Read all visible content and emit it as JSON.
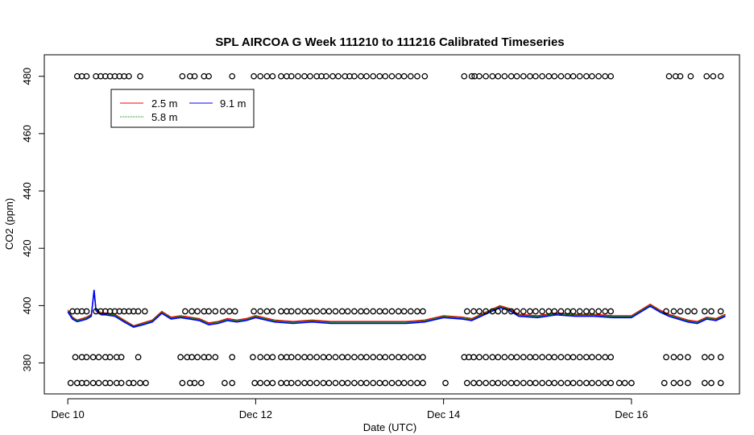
{
  "chart_data": {
    "type": "line",
    "title": "SPL AIRCOA G  Week 111210 to 111216  Calibrated Timeseries",
    "xlabel": "Date (UTC)",
    "ylabel": "CO2 (ppm)",
    "x_tick_labels": [
      "Dec 10",
      "Dec 12",
      "Dec 14",
      "Dec 16"
    ],
    "x_tick_values": [
      0,
      2,
      4,
      6
    ],
    "xlim": [
      -0.25,
      7.15
    ],
    "y_ticks": [
      380,
      400,
      420,
      440,
      460,
      480
    ],
    "ylim": [
      369.2,
      487.5
    ],
    "grid": false,
    "legend": {
      "placement": "top-left",
      "entries": [
        "2.5 m",
        "5.8 m",
        "9.1 m"
      ]
    },
    "series": [
      {
        "name": "2.5 m",
        "color": "#ff0000",
        "x": [
          0.0,
          0.05,
          0.1,
          0.15,
          0.2,
          0.25,
          0.28,
          0.3,
          0.33,
          0.36,
          0.4,
          0.5,
          0.6,
          0.7,
          0.8,
          0.9,
          1.0,
          1.1,
          1.2,
          1.3,
          1.4,
          1.5,
          1.6,
          1.7,
          1.8,
          1.9,
          2.0,
          2.2,
          2.4,
          2.6,
          2.8,
          3.0,
          3.2,
          3.4,
          3.6,
          3.8,
          4.0,
          4.2,
          4.3,
          4.5,
          4.6,
          4.7,
          4.8,
          5.0,
          5.2,
          5.4,
          5.6,
          5.8,
          6.0,
          6.1,
          6.2,
          6.3,
          6.4,
          6.6,
          6.7,
          6.8,
          6.9,
          7.0
        ],
        "y": [
          398.5,
          396,
          395,
          395.5,
          396,
          397,
          405,
          399,
          398,
          397.5,
          397.5,
          397,
          395,
          393,
          394,
          395,
          398,
          396,
          396.5,
          396,
          395.5,
          394,
          394.5,
          395.5,
          395,
          395.5,
          396.5,
          395,
          394.5,
          395,
          394.5,
          394.5,
          394.5,
          394.5,
          394.5,
          395,
          396.5,
          396,
          395.5,
          398.5,
          400,
          399,
          397,
          396.5,
          397.5,
          397,
          397,
          396.5,
          396.5,
          398.5,
          400.5,
          398.5,
          397,
          395,
          394.5,
          396,
          395.5,
          397
        ]
      },
      {
        "name": "5.8 m",
        "color": "#008000",
        "x": [
          0.0,
          0.05,
          0.1,
          0.15,
          0.2,
          0.25,
          0.28,
          0.3,
          0.33,
          0.36,
          0.4,
          0.5,
          0.6,
          0.7,
          0.8,
          0.9,
          1.0,
          1.1,
          1.2,
          1.3,
          1.4,
          1.5,
          1.6,
          1.7,
          1.8,
          1.9,
          2.0,
          2.2,
          2.4,
          2.6,
          2.8,
          3.0,
          3.2,
          3.4,
          3.6,
          3.8,
          4.0,
          4.2,
          4.3,
          4.5,
          4.6,
          4.7,
          4.8,
          5.0,
          5.2,
          5.4,
          5.6,
          5.8,
          6.0,
          6.1,
          6.2,
          6.3,
          6.4,
          6.6,
          6.7,
          6.8,
          6.9,
          7.0
        ],
        "y": [
          398.2,
          395.7,
          394.8,
          395.2,
          395.7,
          396.7,
          404.5,
          398.7,
          397.7,
          397.2,
          397.2,
          396.7,
          394.7,
          392.8,
          393.7,
          394.7,
          397.7,
          395.7,
          396.2,
          395.7,
          395.2,
          393.7,
          394.2,
          395.2,
          394.7,
          395.2,
          396.2,
          394.7,
          394.2,
          394.7,
          394.2,
          394.2,
          394.2,
          394.2,
          394.2,
          394.7,
          396.2,
          395.7,
          395.2,
          398.2,
          399.7,
          398.7,
          396.7,
          396.2,
          397.2,
          396.7,
          396.7,
          396.2,
          396.2,
          398.2,
          400.2,
          398.2,
          396.7,
          394.7,
          394.2,
          395.7,
          395.2,
          396.7
        ]
      },
      {
        "name": "9.1 m",
        "color": "#0000ff",
        "x": [
          0.0,
          0.05,
          0.1,
          0.15,
          0.2,
          0.25,
          0.28,
          0.3,
          0.33,
          0.36,
          0.4,
          0.5,
          0.6,
          0.7,
          0.8,
          0.9,
          1.0,
          1.1,
          1.2,
          1.3,
          1.4,
          1.5,
          1.6,
          1.7,
          1.8,
          1.9,
          2.0,
          2.2,
          2.4,
          2.6,
          2.8,
          3.0,
          3.2,
          3.4,
          3.6,
          3.8,
          4.0,
          4.2,
          4.3,
          4.5,
          4.6,
          4.7,
          4.8,
          5.0,
          5.2,
          5.4,
          5.6,
          5.8,
          6.0,
          6.1,
          6.2,
          6.3,
          6.4,
          6.6,
          6.7,
          6.8,
          6.9,
          7.0
        ],
        "y": [
          397.8,
          395.3,
          394.4,
          394.8,
          395.3,
          396.3,
          405.5,
          398.3,
          397.3,
          396.8,
          396.8,
          396.3,
          394.3,
          392.5,
          393.3,
          394.3,
          397.3,
          395.3,
          395.8,
          395.3,
          394.8,
          393.3,
          393.8,
          394.8,
          394.3,
          394.8,
          395.8,
          394.3,
          393.8,
          394.3,
          393.8,
          393.8,
          393.8,
          393.8,
          393.8,
          394.3,
          395.8,
          395.3,
          394.8,
          397.8,
          399.3,
          398.3,
          396.3,
          395.8,
          396.8,
          396.3,
          396.3,
          395.8,
          395.8,
          397.8,
          399.8,
          397.8,
          396.3,
          394.3,
          393.8,
          395.3,
          394.8,
          396.3
        ]
      }
    ],
    "markers": {
      "shape": "open-circle",
      "rows": [
        {
          "y": 480,
          "x": [
            0.1,
            0.15,
            0.2,
            0.3,
            0.35,
            0.4,
            0.45,
            0.5,
            0.55,
            0.6,
            0.65,
            0.77,
            1.22,
            1.3,
            1.35,
            1.45,
            1.5,
            1.75,
            1.98,
            2.05,
            2.12,
            2.18,
            2.27,
            2.33,
            2.38,
            2.45,
            2.52,
            2.58,
            2.65,
            2.7,
            2.75,
            2.82,
            2.88,
            2.95,
            3.0,
            3.05,
            3.12,
            3.18,
            3.25,
            3.32,
            3.38,
            3.45,
            3.52,
            3.58,
            3.65,
            3.72,
            3.8,
            4.22,
            4.3,
            4.33,
            4.38,
            4.45,
            4.52,
            4.58,
            4.65,
            4.72,
            4.78,
            4.85,
            4.92,
            4.98,
            5.05,
            5.12,
            5.18,
            5.25,
            5.32,
            5.38,
            5.45,
            5.52,
            5.58,
            5.65,
            5.72,
            5.78,
            6.4,
            6.47,
            6.52,
            6.63,
            6.8,
            6.87,
            6.95
          ]
        },
        {
          "y": 398,
          "x": [
            0.05,
            0.1,
            0.15,
            0.2,
            0.3,
            0.35,
            0.4,
            0.45,
            0.5,
            0.55,
            0.6,
            0.65,
            0.7,
            0.75,
            0.82,
            1.25,
            1.32,
            1.38,
            1.45,
            1.5,
            1.57,
            1.65,
            1.72,
            1.78,
            1.98,
            2.05,
            2.12,
            2.18,
            2.27,
            2.33,
            2.38,
            2.45,
            2.52,
            2.58,
            2.65,
            2.72,
            2.78,
            2.85,
            2.92,
            2.98,
            3.05,
            3.12,
            3.18,
            3.25,
            3.32,
            3.38,
            3.45,
            3.52,
            3.58,
            3.65,
            3.72,
            3.78,
            4.25,
            4.32,
            4.38,
            4.45,
            4.52,
            4.58,
            4.65,
            4.72,
            4.78,
            4.85,
            4.92,
            4.98,
            5.05,
            5.12,
            5.18,
            5.25,
            5.32,
            5.38,
            5.45,
            5.52,
            5.58,
            5.65,
            5.72,
            5.78,
            6.37,
            6.45,
            6.52,
            6.6,
            6.67,
            6.78,
            6.85,
            6.95
          ]
        },
        {
          "y": 382,
          "x": [
            0.08,
            0.15,
            0.2,
            0.27,
            0.33,
            0.4,
            0.45,
            0.52,
            0.57,
            0.75,
            1.2,
            1.27,
            1.32,
            1.38,
            1.45,
            1.5,
            1.57,
            1.75,
            1.97,
            2.05,
            2.12,
            2.18,
            2.27,
            2.33,
            2.38,
            2.45,
            2.52,
            2.58,
            2.65,
            2.72,
            2.78,
            2.85,
            2.92,
            2.98,
            3.05,
            3.12,
            3.18,
            3.25,
            3.32,
            3.38,
            3.45,
            3.52,
            3.58,
            3.65,
            3.72,
            3.78,
            4.22,
            4.27,
            4.32,
            4.38,
            4.45,
            4.52,
            4.58,
            4.65,
            4.72,
            4.78,
            4.85,
            4.92,
            4.98,
            5.05,
            5.12,
            5.18,
            5.25,
            5.32,
            5.38,
            5.45,
            5.52,
            5.58,
            5.65,
            5.72,
            5.78,
            6.37,
            6.45,
            6.52,
            6.6,
            6.78,
            6.85,
            6.95
          ]
        },
        {
          "y": 373,
          "x": [
            0.03,
            0.1,
            0.15,
            0.2,
            0.27,
            0.33,
            0.4,
            0.45,
            0.52,
            0.57,
            0.65,
            0.7,
            0.77,
            0.83,
            1.22,
            1.3,
            1.35,
            1.42,
            1.67,
            1.75,
            1.99,
            2.05,
            2.12,
            2.18,
            2.27,
            2.33,
            2.38,
            2.45,
            2.52,
            2.58,
            2.65,
            2.72,
            2.78,
            2.85,
            2.92,
            2.98,
            3.05,
            3.12,
            3.18,
            3.25,
            3.32,
            3.38,
            3.45,
            3.52,
            3.58,
            3.65,
            3.72,
            3.78,
            4.02,
            4.25,
            4.32,
            4.38,
            4.45,
            4.52,
            4.58,
            4.65,
            4.72,
            4.78,
            4.85,
            4.92,
            4.98,
            5.05,
            5.12,
            5.18,
            5.25,
            5.32,
            5.38,
            5.45,
            5.52,
            5.58,
            5.65,
            5.72,
            5.78,
            5.87,
            5.93,
            6.0,
            6.35,
            6.45,
            6.52,
            6.6,
            6.78,
            6.85,
            6.95
          ]
        }
      ]
    }
  }
}
